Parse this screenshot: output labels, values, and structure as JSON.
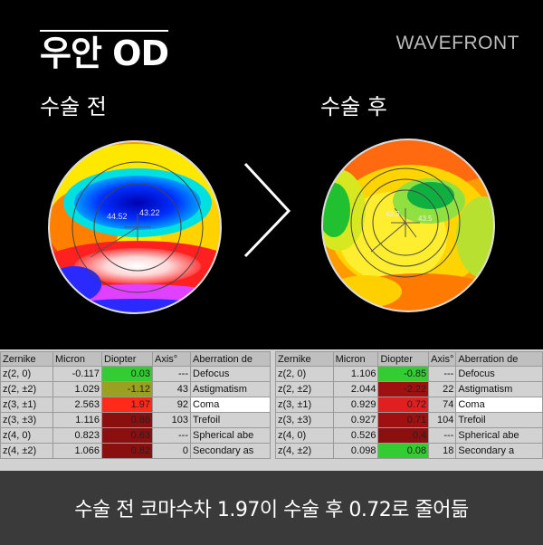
{
  "header": {
    "title": "우안 OD",
    "brand": "WAVEFRONT",
    "label_before": "수술 전",
    "label_after": "수술 후"
  },
  "maps": {
    "before": {
      "readout_left": "44.52",
      "readout_right": "43.22"
    },
    "after": {
      "readout_left": "43.3",
      "readout_right": "43.5"
    }
  },
  "tables": {
    "headers": [
      "Zernike",
      "Micron",
      "Diopter",
      "Axis°",
      "Aberration de"
    ],
    "before": [
      {
        "z": "z(2, 0)",
        "micron": "-0.117",
        "diopter": "0.03",
        "axis": "---",
        "name": "Defocus",
        "color": "#33cc33"
      },
      {
        "z": "z(2, ±2)",
        "micron": "1.029",
        "diopter": "-1.12",
        "axis": "43",
        "name": "Astigmatism",
        "color": "#9aa020"
      },
      {
        "z": "z(3, ±1)",
        "micron": "2.563",
        "diopter": "1.97",
        "axis": "92",
        "name": "Coma",
        "color": "#ff2a1a"
      },
      {
        "z": "z(3, ±3)",
        "micron": "1.116",
        "diopter": "0.86",
        "axis": "103",
        "name": "Trefoil",
        "color": "#8a1010"
      },
      {
        "z": "z(4, 0)",
        "micron": "0.823",
        "diopter": "0.63",
        "axis": "---",
        "name": "Spherical abe",
        "color": "#8a1010"
      },
      {
        "z": "z(4, ±2)",
        "micron": "1.066",
        "diopter": "0.82",
        "axis": "0",
        "name": "Secondary as",
        "color": "#8a1010"
      }
    ],
    "after": [
      {
        "z": "z(2, 0)",
        "micron": "1.106",
        "diopter": "-0.85",
        "axis": "---",
        "name": "Defocus",
        "color": "#33cc33"
      },
      {
        "z": "z(2, ±2)",
        "micron": "2.044",
        "diopter": "-2.22",
        "axis": "22",
        "name": "Astigmatism",
        "color": "#a01010"
      },
      {
        "z": "z(3, ±1)",
        "micron": "0.929",
        "diopter": "0.72",
        "axis": "74",
        "name": "Coma",
        "color": "#e02020"
      },
      {
        "z": "z(3, ±3)",
        "micron": "0.927",
        "diopter": "0.71",
        "axis": "104",
        "name": "Trefoil",
        "color": "#a01010"
      },
      {
        "z": "z(4, 0)",
        "micron": "0.526",
        "diopter": "0.4",
        "axis": "---",
        "name": "Spherical abe",
        "color": "#8a1010"
      },
      {
        "z": "z(4, ±2)",
        "micron": "0.098",
        "diopter": "0.08",
        "axis": "18",
        "name": "Secondary a",
        "color": "#33cc33"
      }
    ]
  },
  "caption": "수술 전 코마수차 1.97이 수술 후 0.72로 줄어듦"
}
